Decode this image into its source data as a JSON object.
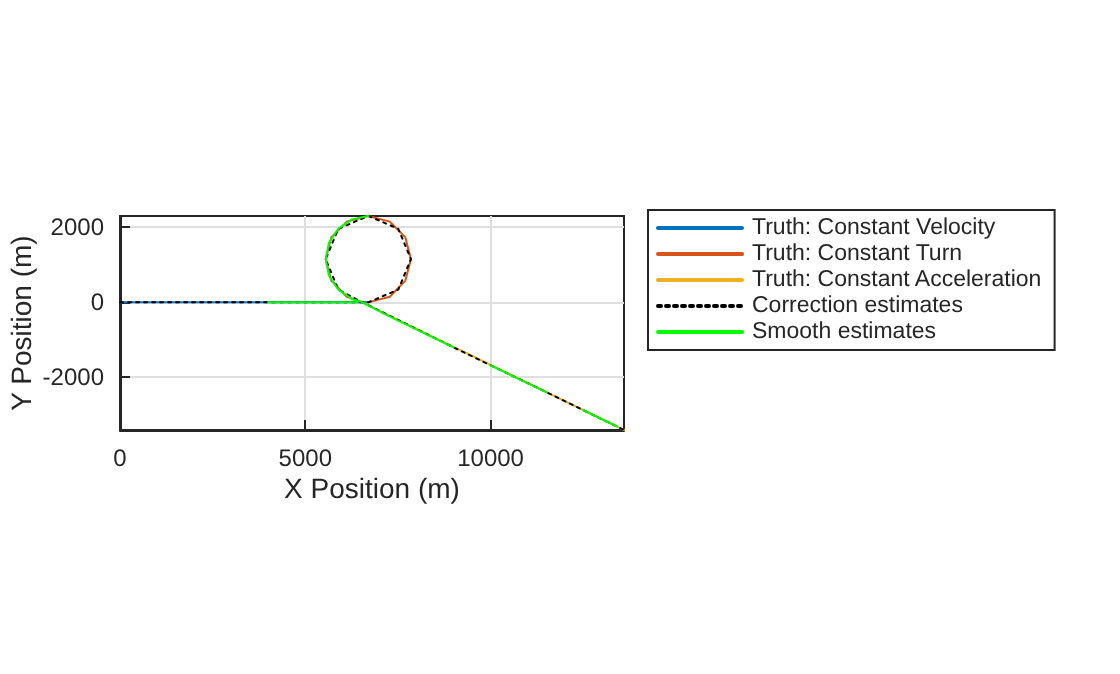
{
  "chart_data": {
    "type": "line",
    "xlabel": "X Position (m)",
    "ylabel": "Y Position (m)",
    "xlim": [
      0,
      13600
    ],
    "ylim": [
      -3400,
      2300
    ],
    "xticks": [
      0,
      5000,
      10000
    ],
    "yticks": [
      -2000,
      0,
      2000
    ],
    "grid": true,
    "legend": "right",
    "marker": "none",
    "series": [
      {
        "name": "Truth: Constant Velocity",
        "color": "#0072bd",
        "line_style": "solid",
        "x": [
          0,
          6700
        ],
        "values": [
          0,
          0
        ]
      },
      {
        "name": "Truth: Constant Turn",
        "color": "#d95319",
        "line_style": "solid",
        "x": [
          6700,
          7280,
          7700,
          7850,
          7700,
          7280,
          6700,
          6120,
          5700,
          5550,
          5700,
          6120,
          6500
        ],
        "values": [
          0,
          150,
          580,
          1150,
          1730,
          2150,
          2300,
          2150,
          1730,
          1150,
          580,
          150,
          20
        ]
      },
      {
        "name": "Truth: Constant Acceleration",
        "color": "#edb120",
        "line_style": "solid",
        "x": [
          6500,
          13600
        ],
        "values": [
          20,
          -3400
        ]
      },
      {
        "name": "Correction estimates",
        "color": "#000000",
        "line_style": "dotted",
        "x": [
          0,
          2000,
          4000,
          6700,
          7510,
          7850,
          7510,
          6700,
          5890,
          5550,
          5890,
          6500,
          9000,
          11500,
          13600
        ],
        "values": [
          0,
          0,
          0,
          0,
          340,
          1150,
          1960,
          2300,
          1960,
          1150,
          340,
          20,
          -1200,
          -2390,
          -3400
        ]
      },
      {
        "name": "Smooth estimates",
        "color": "#00ff00",
        "line_style": "solid",
        "x": [
          4000,
          6400
        ],
        "values": [
          0,
          0
        ]
      },
      {
        "color": "#00ff00",
        "line_style": "solid",
        "x": [
          6700,
          6260,
          5890,
          5640,
          5550,
          5640,
          5890,
          6260,
          6500,
          7200,
          9000
        ],
        "values": [
          2300,
          2210,
          1960,
          1590,
          1150,
          710,
          340,
          90,
          20,
          -340,
          -1200
        ]
      },
      {
        "color": "#00ff00",
        "line_style": "solid",
        "x": [
          10000,
          11500
        ],
        "values": [
          -1680,
          -2390
        ]
      },
      {
        "color": "#00ff00",
        "line_style": "solid",
        "x": [
          12500,
          13400
        ],
        "values": [
          -2870,
          -3300
        ]
      }
    ]
  }
}
